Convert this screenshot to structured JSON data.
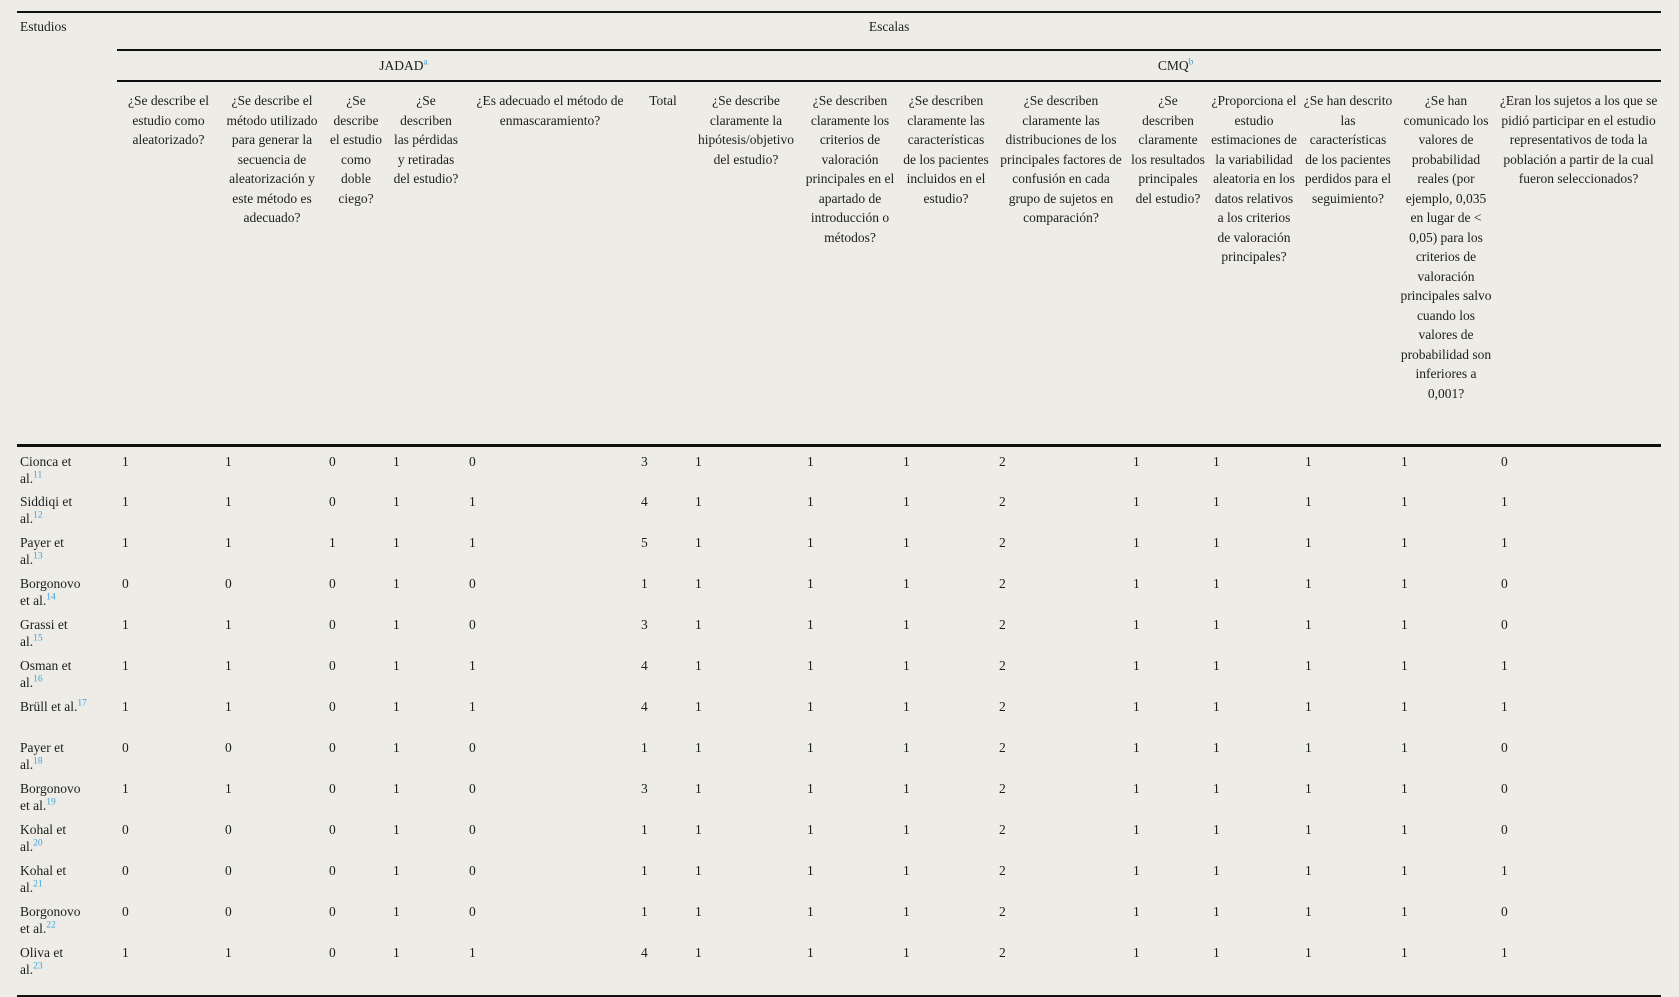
{
  "colors": {
    "page_background": "#edece7",
    "rule_color": "#0f0f0f",
    "text_color": "#1d1d1b",
    "reference_link_blue": "#3fa2d9"
  },
  "table": {
    "studies_header": "Estudios",
    "scales_header": "Escalas",
    "jadad": {
      "label": "JADAD",
      "footnote": "a"
    },
    "cmq": {
      "label": "CMQ",
      "footnote": "b"
    },
    "jadad_questions": [
      "¿Se describe el estudio como aleatorizado?",
      "¿Se describe el método utilizado para generar la secuencia de aleatorización y este método es adecuado?",
      "¿Se describe el estudio como doble ciego?",
      "¿Se describen las pérdidas y retiradas del estudio?",
      "¿Es adecuado el método de enmascaramiento?",
      "Total"
    ],
    "cmq_questions": [
      "¿Se describe claramente la hipótesis/objetivo del estudio?",
      "¿Se describen claramente los criterios de valoración principales en el apartado de introducción o métodos?",
      "¿Se describen claramente las características de los pacientes incluidos en el estudio?",
      "¿Se describen claramente las distribuciones de los principales factores de confusión en cada grupo de sujetos en comparación?",
      "¿Se describen claramente los resultados principales del estudio?",
      "¿Proporciona el estudio estimaciones de la variabilidad aleatoria en los datos relativos a los criterios de valoración principales?",
      "¿Se han descrito las características de los pacientes perdidos para el seguimiento?",
      "¿Se han comunicado los valores de probabilidad reales (por ejemplo, 0,035 en lugar de < 0,05) para los criterios de valoración principales salvo cuando los valores de probabilidad son inferiores a 0,001?",
      "¿Eran los sujetos a los que se pidió participar en el estudio representativos de toda la población a partir de la cual fueron seleccionados?"
    ],
    "rows": [
      {
        "study": "Cionca et al.",
        "ref": "11",
        "values": [
          1,
          1,
          0,
          1,
          0,
          3,
          1,
          1,
          1,
          2,
          1,
          1,
          1,
          1,
          0
        ]
      },
      {
        "study": "Siddiqi et al.",
        "ref": "12",
        "values": [
          1,
          1,
          0,
          1,
          1,
          4,
          1,
          1,
          1,
          2,
          1,
          1,
          1,
          1,
          1
        ]
      },
      {
        "study": "Payer et al.",
        "ref": "13",
        "values": [
          1,
          1,
          1,
          1,
          1,
          5,
          1,
          1,
          1,
          2,
          1,
          1,
          1,
          1,
          1
        ]
      },
      {
        "study": "Borgonovo et al.",
        "ref": "14",
        "values": [
          0,
          0,
          0,
          1,
          0,
          1,
          1,
          1,
          1,
          2,
          1,
          1,
          1,
          1,
          0
        ]
      },
      {
        "study": "Grassi et al.",
        "ref": "15",
        "values": [
          1,
          1,
          0,
          1,
          0,
          3,
          1,
          1,
          1,
          2,
          1,
          1,
          1,
          1,
          0
        ]
      },
      {
        "study": "Osman et al.",
        "ref": "16",
        "values": [
          1,
          1,
          0,
          1,
          1,
          4,
          1,
          1,
          1,
          2,
          1,
          1,
          1,
          1,
          1
        ]
      },
      {
        "study": "Brüll et al.",
        "ref": "17",
        "values": [
          1,
          1,
          0,
          1,
          1,
          4,
          1,
          1,
          1,
          2,
          1,
          1,
          1,
          1,
          1
        ]
      },
      {
        "study": "Payer et al.",
        "ref": "18",
        "values": [
          0,
          0,
          0,
          1,
          0,
          1,
          1,
          1,
          1,
          2,
          1,
          1,
          1,
          1,
          0
        ]
      },
      {
        "study": "Borgonovo et al.",
        "ref": "19",
        "values": [
          1,
          1,
          0,
          1,
          0,
          3,
          1,
          1,
          1,
          2,
          1,
          1,
          1,
          1,
          0
        ]
      },
      {
        "study": "Kohal et al.",
        "ref": "20",
        "values": [
          0,
          0,
          0,
          1,
          0,
          1,
          1,
          1,
          1,
          2,
          1,
          1,
          1,
          1,
          0
        ]
      },
      {
        "study": "Kohal et al.",
        "ref": "21",
        "values": [
          0,
          0,
          0,
          1,
          0,
          1,
          1,
          1,
          1,
          2,
          1,
          1,
          1,
          1,
          1
        ]
      },
      {
        "study": "Borgonovo et al.",
        "ref": "22",
        "values": [
          0,
          0,
          0,
          1,
          0,
          1,
          1,
          1,
          1,
          2,
          1,
          1,
          1,
          1,
          0
        ]
      },
      {
        "study": "Oliva et al.",
        "ref": "23",
        "values": [
          1,
          1,
          0,
          1,
          1,
          4,
          1,
          1,
          1,
          2,
          1,
          1,
          1,
          1,
          1
        ]
      }
    ]
  }
}
